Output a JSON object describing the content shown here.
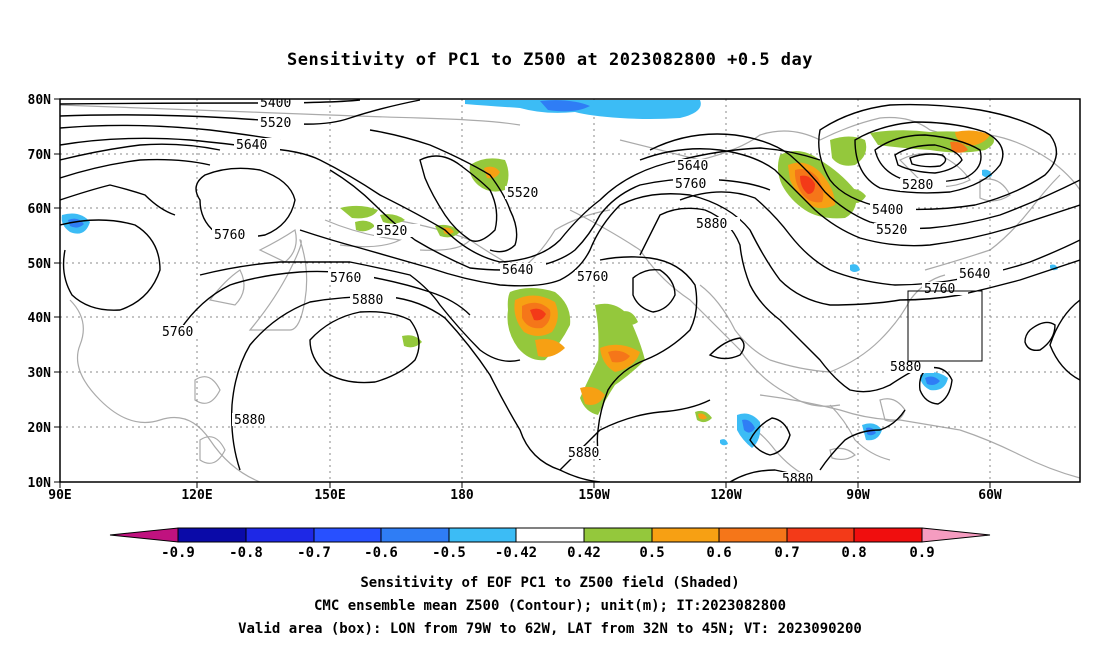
{
  "title": "Sensitivity of PC1 to Z500 at 2023082800 +0.5 day",
  "lat_labels": [
    "80N",
    "70N",
    "60N",
    "50N",
    "40N",
    "30N",
    "20N",
    "10N"
  ],
  "lon_labels": [
    "90E",
    "120E",
    "150E",
    "180",
    "150W",
    "120W",
    "90W",
    "60W"
  ],
  "contour_labels": [
    "5400",
    "5520",
    "5640",
    "5760",
    "5880",
    "5280"
  ],
  "colorbar": {
    "labels": [
      "-0.9",
      "-0.8",
      "-0.7",
      "-0.6",
      "-0.5",
      "-0.42",
      "0.42",
      "0.5",
      "0.6",
      "0.7",
      "0.8",
      "0.9"
    ],
    "colors": [
      "#c0127f",
      "#0a0aa8",
      "#1e28e6",
      "#2850ff",
      "#2f7df5",
      "#3cbcf5",
      "#ffffff",
      "#94c83c",
      "#f7a013",
      "#f57619",
      "#f33a18",
      "#f00e0e",
      "#f59cc0"
    ]
  },
  "caption": {
    "line1": "Sensitivity of EOF PC1 to Z500 field (Shaded)",
    "line2": "CMC ensemble mean Z500 (Contour); unit(m); IT:2023082800",
    "line3": "Valid area (box): LON from 79W to 62W, LAT from 32N to 45N; VT: 2023090200"
  },
  "valid_box": {
    "lon_range": [
      "79W",
      "62W"
    ],
    "lat_range": [
      "32N",
      "45N"
    ]
  }
}
